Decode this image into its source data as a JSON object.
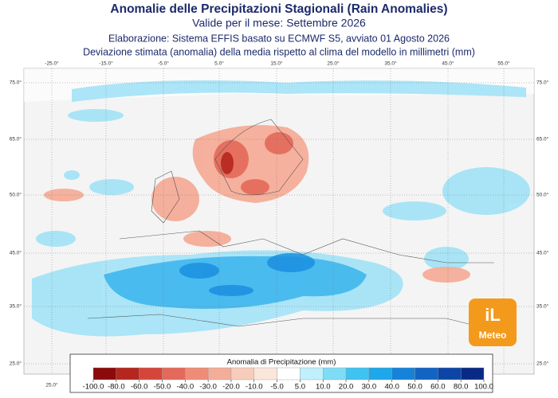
{
  "header": {
    "title": "Anomalie delle Precipitazioni Stagionali (Rain Anomalies)",
    "line1": "Valide per il mese: Settembre 2026",
    "line2": "Elaborazione: Sistema EFFIS basato su ECMWF S5, avviato 01 Agosto 2026",
    "line3": "Deviazione stimata (anomalia) della media rispetto al clima del modello in millimetri (mm)"
  },
  "map": {
    "lon_labels": [
      "-25.0°",
      "-15.0°",
      "-5.0°",
      "5.0°",
      "15.0°",
      "25.0°",
      "35.0°",
      "45.0°",
      "55.0°"
    ],
    "lat_labels": [
      "75.0°",
      "65.0°",
      "50.0°",
      "45.0°",
      "35.0°",
      "25.0°"
    ],
    "bottom_lon_label": "25.0°"
  },
  "legend": {
    "title": "Anomalia di Precipitazione (mm)",
    "ticks": [
      {
        "value": -100,
        "label": "-100.0"
      },
      {
        "value": -80,
        "label": "-80.0"
      },
      {
        "value": -60,
        "label": "-60.0"
      },
      {
        "value": -50,
        "label": "-50.0"
      },
      {
        "value": -40,
        "label": "-40.0"
      },
      {
        "value": -30,
        "label": "-30.0"
      },
      {
        "value": -20,
        "label": "-20.0"
      },
      {
        "value": -10,
        "label": "-10.0"
      },
      {
        "value": -5,
        "label": "-5.0"
      },
      {
        "value": 5,
        "label": "5.0"
      },
      {
        "value": 10,
        "label": "10.0"
      },
      {
        "value": 20,
        "label": "20.0"
      },
      {
        "value": 30,
        "label": "30.0"
      },
      {
        "value": 40,
        "label": "40.0"
      },
      {
        "value": 50,
        "label": "50.0"
      },
      {
        "value": 60,
        "label": "60.0"
      },
      {
        "value": 80,
        "label": "80.0"
      },
      {
        "value": 100,
        "label": "100.0"
      }
    ],
    "colors": [
      "#8b0a0a",
      "#b5261e",
      "#d5463a",
      "#e5695a",
      "#ef8c78",
      "#f4ad98",
      "#f8ccbb",
      "#fbe6dc",
      "#ffffff",
      "#bff0fb",
      "#7fdcf7",
      "#3fc3f0",
      "#1ea7ea",
      "#1583d9",
      "#1264c4",
      "#0c45a6",
      "#082a86"
    ]
  },
  "logo": {
    "line1": "iL",
    "line2": "Meteo"
  }
}
